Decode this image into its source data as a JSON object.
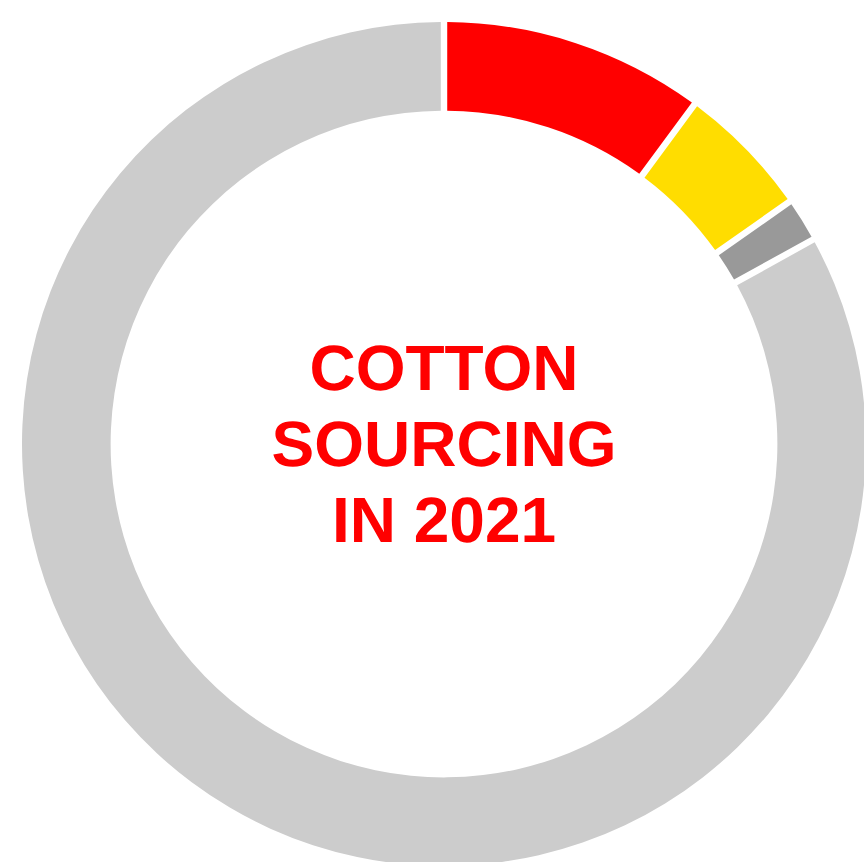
{
  "chart_data": {
    "type": "donut",
    "title": "COTTON SOURCING IN 2021",
    "categories": [
      null,
      null,
      null,
      null
    ],
    "values": [
      10,
      5,
      1.5,
      83.5
    ],
    "colors": [
      "#ff0000",
      "#ffdd00",
      "#999999",
      "#cccccc"
    ]
  }
}
